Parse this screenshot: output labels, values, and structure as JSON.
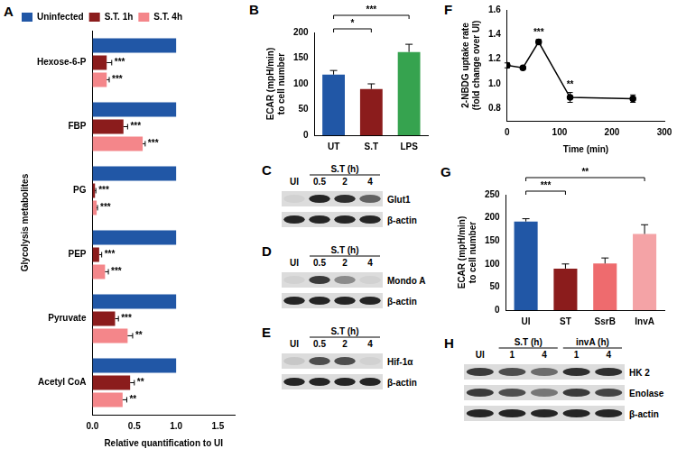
{
  "chart_data": [
    {
      "panel": "A",
      "type": "bar",
      "orientation": "horizontal",
      "x_label": "Relative quantification to UI",
      "y_label": "Glycolysis metabolites",
      "categories": [
        "Hexose-6-P",
        "FBP",
        "PG",
        "PEP",
        "Pyruvate",
        "Acetyl CoA"
      ],
      "series": [
        {
          "name": "Uninfected",
          "color": "#2157a6",
          "values": [
            1,
            1,
            1,
            1,
            1,
            1
          ]
        },
        {
          "name": "S.T. 1h",
          "color": "#8b1c1c",
          "values": [
            0.17,
            0.37,
            0.03,
            0.08,
            0.27,
            0.45
          ],
          "errors": [
            0.06,
            0.05,
            0.01,
            0.03,
            0.04,
            0.05
          ],
          "significance": [
            "***",
            "***",
            "***",
            "***",
            "***",
            "**"
          ]
        },
        {
          "name": "S.T. 4h",
          "color": "#f4868a",
          "values": [
            0.17,
            0.6,
            0.05,
            0.15,
            0.42,
            0.36
          ],
          "errors": [
            0.03,
            0.03,
            0.01,
            0.04,
            0.06,
            0.05
          ],
          "significance": [
            "***",
            "***",
            "***",
            "***",
            "**",
            "**"
          ]
        }
      ],
      "xlim": [
        0,
        1.7
      ],
      "xticks": [
        {
          "value": 0,
          "label": "0.0"
        },
        {
          "value": 0.5,
          "label": "0.5"
        },
        {
          "value": 1,
          "label": "1.0"
        },
        {
          "value": 1.5,
          "label": "1.5"
        }
      ],
      "grid": false,
      "legend": "top-left"
    },
    {
      "panel": "B",
      "type": "bar",
      "y_label": [
        "ECAR (mpH/min)",
        "to cell number"
      ],
      "categories": [
        "UT",
        "S.T",
        "LPS"
      ],
      "values": [
        118,
        90,
        162
      ],
      "errors": [
        8,
        10,
        15
      ],
      "colors": [
        "#2157a6",
        "#8b1c1c",
        "#36a34f"
      ],
      "comparisons": [
        {
          "from": "UT",
          "to": "S.T",
          "label": "*"
        },
        {
          "from": "UT",
          "to": "LPS",
          "label": "***"
        }
      ],
      "ylim": [
        0,
        200
      ],
      "yticks": [
        0,
        50,
        100,
        150,
        200
      ],
      "grid": false
    },
    {
      "panel": "F",
      "type": "line",
      "x_label": "Time (min)",
      "y_label": [
        "2-NBDG uptake rate",
        "(fold change over UI)"
      ],
      "x": [
        0,
        30,
        60,
        120,
        240
      ],
      "values": [
        1.15,
        1.13,
        1.34,
        0.89,
        0.88
      ],
      "errors": [
        0.02,
        0.01,
        0.02,
        0.04,
        0.03
      ],
      "significance": [
        null,
        null,
        "***",
        "**",
        null
      ],
      "color": "#000000",
      "marker": "circle",
      "xlim": [
        0,
        300
      ],
      "xticks": [
        0,
        100,
        200,
        300
      ],
      "ylim": [
        0.7,
        1.6
      ],
      "yticks": [
        {
          "value": 0.8,
          "label": "0.8"
        },
        {
          "value": 1,
          "label": "1.0"
        },
        {
          "value": 1.2,
          "label": "1.2"
        },
        {
          "value": 1.4,
          "label": "1.4"
        },
        {
          "value": 1.6,
          "label": "1.6"
        }
      ],
      "grid": false
    },
    {
      "panel": "G",
      "type": "bar",
      "y_label": [
        "ECAR (mpH/min)",
        "to cell number"
      ],
      "categories": [
        "UI",
        "ST",
        "SsrB",
        "InvA"
      ],
      "values": [
        192,
        90,
        101,
        165
      ],
      "errors": [
        6,
        10,
        12,
        20
      ],
      "colors": [
        "#2157a6",
        "#8b1c1c",
        "#ee6b6e",
        "#f4a3a6"
      ],
      "comparisons": [
        {
          "from": "UI",
          "to": "ST",
          "label": "***"
        },
        {
          "from": "UI",
          "to": "InvA",
          "label": "**"
        }
      ],
      "ylim": [
        0,
        250
      ],
      "yticks": [
        0,
        50,
        100,
        150,
        200,
        250
      ],
      "grid": false
    }
  ],
  "blots": [
    {
      "panel": "C",
      "groups": [
        {
          "header": null,
          "lanes": [
            "UI"
          ]
        },
        {
          "header": "S.T (h)",
          "lanes": [
            "0.5",
            "2",
            "4"
          ]
        }
      ],
      "rows": [
        {
          "label": "Glut1",
          "bands": [
            0.05,
            0.9,
            0.85,
            0.6
          ]
        },
        {
          "label": "β-actin",
          "bands": [
            0.9,
            0.9,
            0.9,
            0.9
          ]
        }
      ]
    },
    {
      "panel": "D",
      "groups": [
        {
          "header": null,
          "lanes": [
            "UI"
          ]
        },
        {
          "header": "S.T (h)",
          "lanes": [
            "0.5",
            "2",
            "4"
          ]
        }
      ],
      "rows": [
        {
          "label": "Mondo A",
          "bands": [
            0.05,
            0.8,
            0.4,
            0.05
          ]
        },
        {
          "label": "β-actin",
          "bands": [
            0.9,
            0.9,
            0.9,
            0.9
          ]
        }
      ]
    },
    {
      "panel": "E",
      "groups": [
        {
          "header": null,
          "lanes": [
            "UI"
          ]
        },
        {
          "header": "S.T (h)",
          "lanes": [
            "0.5",
            "2",
            "4"
          ]
        }
      ],
      "rows": [
        {
          "label": "Hif-1α",
          "bands": [
            0.1,
            0.7,
            0.7,
            0.05
          ]
        },
        {
          "label": "β-actin",
          "bands": [
            0.9,
            0.9,
            0.9,
            0.9
          ]
        }
      ]
    },
    {
      "panel": "H",
      "groups": [
        {
          "header": null,
          "lanes": [
            "UI"
          ]
        },
        {
          "header": "S.T (h)",
          "lanes": [
            "1",
            "4"
          ]
        },
        {
          "header": "invA (h)",
          "lanes": [
            "1",
            "4"
          ]
        }
      ],
      "rows": [
        {
          "label": "HK 2",
          "bands": [
            0.8,
            0.7,
            0.55,
            0.85,
            0.85
          ]
        },
        {
          "label": "Enolase",
          "bands": [
            0.8,
            0.7,
            0.5,
            0.8,
            0.75
          ]
        },
        {
          "label": "β-actin",
          "bands": [
            0.9,
            0.9,
            0.9,
            0.9,
            0.9
          ]
        }
      ]
    }
  ]
}
